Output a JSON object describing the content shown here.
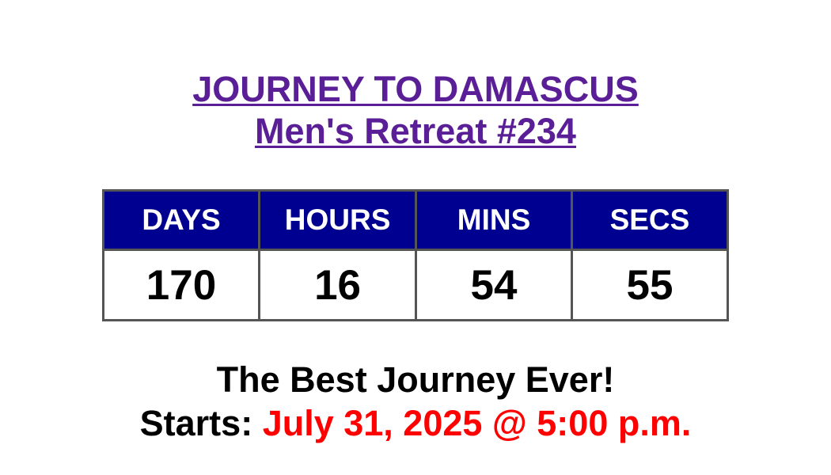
{
  "header": {
    "title_line1": "JOURNEY TO DAMASCUS",
    "title_line2": "Men's Retreat #234",
    "link_color": "#5a1e96"
  },
  "countdown": {
    "header_bg": "#000090",
    "columns": [
      {
        "label": "DAYS",
        "value": "170"
      },
      {
        "label": "HOURS",
        "value": "16"
      },
      {
        "label": "MINS",
        "value": "54"
      },
      {
        "label": "SECS",
        "value": "55"
      }
    ]
  },
  "footer": {
    "tagline": "The Best Journey Ever!",
    "starts_label": "Starts: ",
    "start_date": "July 31, 2025 @ 5:00 p.m.",
    "date_color": "#ff0000"
  }
}
